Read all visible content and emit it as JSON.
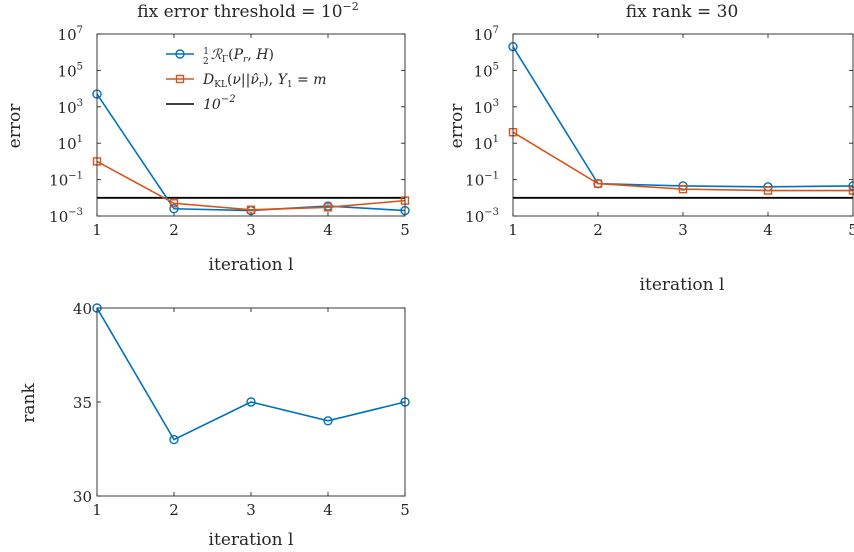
{
  "chart_data": [
    {
      "type": "line",
      "title": "fix error threshold = 10",
      "title_exponent": "−2",
      "xlabel": "iteration l",
      "ylabel": "error",
      "y_scale": "log",
      "x": [
        1,
        2,
        3,
        4,
        5
      ],
      "xlim": [
        1,
        5
      ],
      "ylim": [
        0.001,
        10000000
      ],
      "x_ticks": [
        "1",
        "2",
        "3",
        "4",
        "5"
      ],
      "y_ticks": [
        {
          "base": "10",
          "exp": "-3",
          "value": 0.001
        },
        {
          "base": "10",
          "exp": "-1",
          "value": 0.1
        },
        {
          "base": "10",
          "exp": "1",
          "value": 10
        },
        {
          "base": "10",
          "exp": "3",
          "value": 1000
        },
        {
          "base": "10",
          "exp": "5",
          "value": 100000
        },
        {
          "base": "10",
          "exp": "7",
          "value": 10000000
        }
      ],
      "series": [
        {
          "name": "½ R_Γ(P_r, H)",
          "color": "#0072BD",
          "marker": "circle",
          "values": [
            5000,
            0.0025,
            0.002,
            0.0035,
            0.002
          ]
        },
        {
          "name": "D_KL(ν||ν̂_r), Y_1 = m",
          "color": "#D95319",
          "marker": "square",
          "values": [
            1,
            0.005,
            0.0022,
            0.003,
            0.007
          ]
        }
      ],
      "reference_line": {
        "name": "10",
        "exponent": "−2",
        "value": 0.01,
        "color": "#000000"
      },
      "legend_position": "top-right",
      "grid": false
    },
    {
      "type": "line",
      "title": "fix rank = 30",
      "xlabel": "iteration l",
      "ylabel": "error",
      "y_scale": "log",
      "x": [
        1,
        2,
        3,
        4,
        5
      ],
      "xlim": [
        1,
        5
      ],
      "ylim": [
        0.001,
        10000000
      ],
      "x_ticks": [
        "1",
        "2",
        "3",
        "4",
        "5"
      ],
      "y_ticks": [
        {
          "base": "10",
          "exp": "-3",
          "value": 0.001
        },
        {
          "base": "10",
          "exp": "-1",
          "value": 0.1
        },
        {
          "base": "10",
          "exp": "1",
          "value": 10
        },
        {
          "base": "10",
          "exp": "3",
          "value": 1000
        },
        {
          "base": "10",
          "exp": "5",
          "value": 100000
        },
        {
          "base": "10",
          "exp": "7",
          "value": 10000000
        }
      ],
      "series": [
        {
          "color": "#0072BD",
          "marker": "circle",
          "values": [
            2000000,
            0.06,
            0.045,
            0.04,
            0.045
          ]
        },
        {
          "color": "#D95319",
          "marker": "square",
          "values": [
            40,
            0.06,
            0.03,
            0.025,
            0.025
          ]
        }
      ],
      "reference_line": {
        "value": 0.01,
        "color": "#000000"
      },
      "grid": false
    },
    {
      "type": "line",
      "title": "",
      "xlabel": "iteration l",
      "ylabel": "rank",
      "y_scale": "linear",
      "x": [
        1,
        2,
        3,
        4,
        5
      ],
      "xlim": [
        1,
        5
      ],
      "ylim": [
        30,
        40
      ],
      "x_ticks": [
        "1",
        "2",
        "3",
        "4",
        "5"
      ],
      "y_ticks": [
        {
          "base": "30",
          "exp": "",
          "value": 30
        },
        {
          "base": "35",
          "exp": "",
          "value": 35
        },
        {
          "base": "40",
          "exp": "",
          "value": 40
        }
      ],
      "series": [
        {
          "color": "#0072BD",
          "marker": "circle",
          "values": [
            40,
            33,
            35,
            34,
            35
          ]
        }
      ],
      "grid": false
    }
  ]
}
